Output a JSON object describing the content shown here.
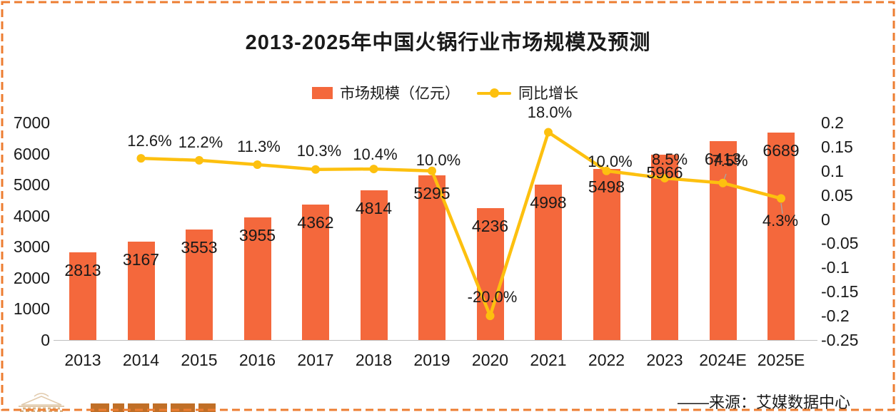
{
  "frame": {
    "border_color": "#ED7D31"
  },
  "legend": {
    "bar_label": "市场规模（亿元）",
    "line_label": "同比增长"
  },
  "chart_data": {
    "type": "bar",
    "title": "2013-2025年中国火锅行业市场规模及预测",
    "categories": [
      "2013",
      "2014",
      "2015",
      "2016",
      "2017",
      "2018",
      "2019",
      "2020",
      "2021",
      "2022",
      "2023",
      "2024E",
      "2025E"
    ],
    "series": [
      {
        "name": "市场规模（亿元）",
        "kind": "bar",
        "color": "#F4683C",
        "values": [
          2813,
          3167,
          3553,
          3955,
          4362,
          4814,
          5295,
          4236,
          4998,
          5498,
          5966,
          6413,
          6689
        ]
      },
      {
        "name": "同比增长",
        "kind": "line",
        "color": "#FDC00F",
        "values": [
          null,
          0.126,
          0.122,
          0.113,
          0.103,
          0.104,
          0.1,
          -0.2,
          0.18,
          0.1,
          0.085,
          0.075,
          0.043
        ],
        "point_labels": [
          "",
          "12.6%",
          "12.2%",
          "11.3%",
          "10.3%",
          "10.4%",
          "10.0%",
          "-20.0%",
          "18.0%",
          "10.0%",
          "8.5%",
          "7.5%",
          "4.3%"
        ]
      }
    ],
    "left_axis": {
      "min": 0,
      "max": 7000,
      "ticks": [
        "7000",
        "6000",
        "5000",
        "4000",
        "3000",
        "2000",
        "1000",
        "0"
      ]
    },
    "right_axis": {
      "min": -0.25,
      "max": 0.2,
      "ticks": [
        "0.2",
        "0.15",
        "0.1",
        "0.05",
        "0",
        "-0.05",
        "-0.1",
        "-0.15",
        "-0.2",
        "-0.25"
      ]
    },
    "legend_position": "top",
    "grid": false,
    "source": "——来源：艾媒数据中心"
  }
}
